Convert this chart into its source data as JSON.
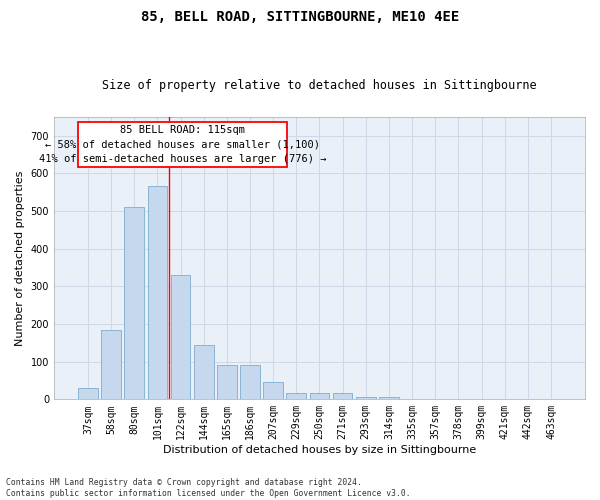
{
  "title": "85, BELL ROAD, SITTINGBOURNE, ME10 4EE",
  "subtitle": "Size of property relative to detached houses in Sittingbourne",
  "xlabel": "Distribution of detached houses by size in Sittingbourne",
  "ylabel": "Number of detached properties",
  "footnote": "Contains HM Land Registry data © Crown copyright and database right 2024.\nContains public sector information licensed under the Open Government Licence v3.0.",
  "categories": [
    "37sqm",
    "58sqm",
    "80sqm",
    "101sqm",
    "122sqm",
    "144sqm",
    "165sqm",
    "186sqm",
    "207sqm",
    "229sqm",
    "250sqm",
    "271sqm",
    "293sqm",
    "314sqm",
    "335sqm",
    "357sqm",
    "378sqm",
    "399sqm",
    "421sqm",
    "442sqm",
    "463sqm"
  ],
  "values": [
    30,
    185,
    510,
    565,
    330,
    145,
    90,
    90,
    45,
    18,
    18,
    18,
    5,
    5,
    0,
    0,
    0,
    0,
    0,
    0,
    0
  ],
  "bar_color": "#c5d8ed",
  "bar_edge_color": "#8ab4d4",
  "grid_color": "#d0d8e8",
  "background_color": "#eaf0f8",
  "ann_line1": "85 BELL ROAD: 115sqm",
  "ann_line2": "← 58% of detached houses are smaller (1,100)",
  "ann_line3": "41% of semi-detached houses are larger (776) →",
  "ylim": [
    0,
    750
  ],
  "yticks": [
    0,
    100,
    200,
    300,
    400,
    500,
    600,
    700
  ],
  "title_fontsize": 10,
  "subtitle_fontsize": 8.5,
  "xlabel_fontsize": 8,
  "ylabel_fontsize": 8,
  "tick_fontsize": 7,
  "annotation_fontsize": 7.5,
  "footnote_fontsize": 5.8
}
